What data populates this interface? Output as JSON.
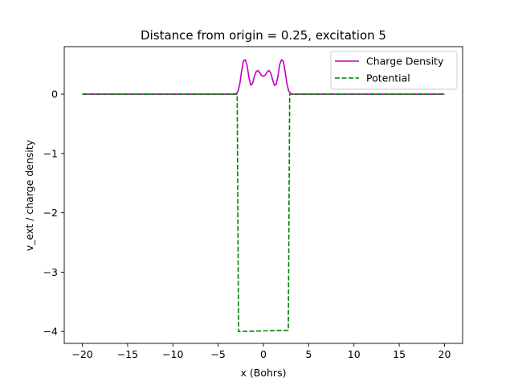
{
  "chart_data": {
    "type": "line",
    "title": "Distance from origin = 0.25, excitation 5",
    "xlabel": "x (Bohrs)",
    "ylabel": "v_ext / charge density",
    "xlim": [
      -22,
      22
    ],
    "ylim": [
      -4.2,
      0.8
    ],
    "xticks": [
      -20,
      -15,
      -10,
      -5,
      0,
      5,
      10,
      15,
      20
    ],
    "xtick_labels": [
      "−20",
      "−15",
      "−10",
      "−5",
      "0",
      "5",
      "10",
      "15",
      "20"
    ],
    "yticks": [
      0,
      -1,
      -2,
      -3,
      -4
    ],
    "ytick_labels": [
      "0",
      "−1",
      "−2",
      "−3",
      "−4"
    ],
    "grid": false,
    "legend_position": "top-right",
    "series": [
      {
        "name": "Charge Density",
        "color": "#bf00bf",
        "style": "solid",
        "points": [
          [
            -20,
            0
          ],
          [
            -4.0,
            0
          ],
          [
            -3.2,
            0.0
          ],
          [
            -3.0,
            0.01
          ],
          [
            -2.8,
            0.05
          ],
          [
            -2.6,
            0.18
          ],
          [
            -2.4,
            0.4
          ],
          [
            -2.2,
            0.56
          ],
          [
            -2.0,
            0.58
          ],
          [
            -1.8,
            0.48
          ],
          [
            -1.6,
            0.28
          ],
          [
            -1.4,
            0.15
          ],
          [
            -1.2,
            0.18
          ],
          [
            -1.0,
            0.3
          ],
          [
            -0.8,
            0.38
          ],
          [
            -0.6,
            0.4
          ],
          [
            -0.4,
            0.36
          ],
          [
            -0.2,
            0.31
          ],
          [
            0.0,
            0.3
          ],
          [
            0.2,
            0.32
          ],
          [
            0.4,
            0.37
          ],
          [
            0.6,
            0.4
          ],
          [
            0.8,
            0.36
          ],
          [
            1.0,
            0.25
          ],
          [
            1.2,
            0.15
          ],
          [
            1.4,
            0.16
          ],
          [
            1.6,
            0.3
          ],
          [
            1.8,
            0.5
          ],
          [
            2.0,
            0.58
          ],
          [
            2.2,
            0.55
          ],
          [
            2.4,
            0.38
          ],
          [
            2.6,
            0.17
          ],
          [
            2.8,
            0.05
          ],
          [
            3.0,
            0.01
          ],
          [
            3.2,
            0.0
          ],
          [
            4.0,
            0
          ],
          [
            20,
            0
          ]
        ]
      },
      {
        "name": "Potential",
        "color": "#008000",
        "style": "dashed",
        "points": [
          [
            -20,
            0
          ],
          [
            -2.9,
            0
          ],
          [
            -2.75,
            -4.0
          ],
          [
            2.75,
            -3.98
          ],
          [
            2.9,
            0
          ],
          [
            20,
            0
          ]
        ]
      }
    ]
  }
}
